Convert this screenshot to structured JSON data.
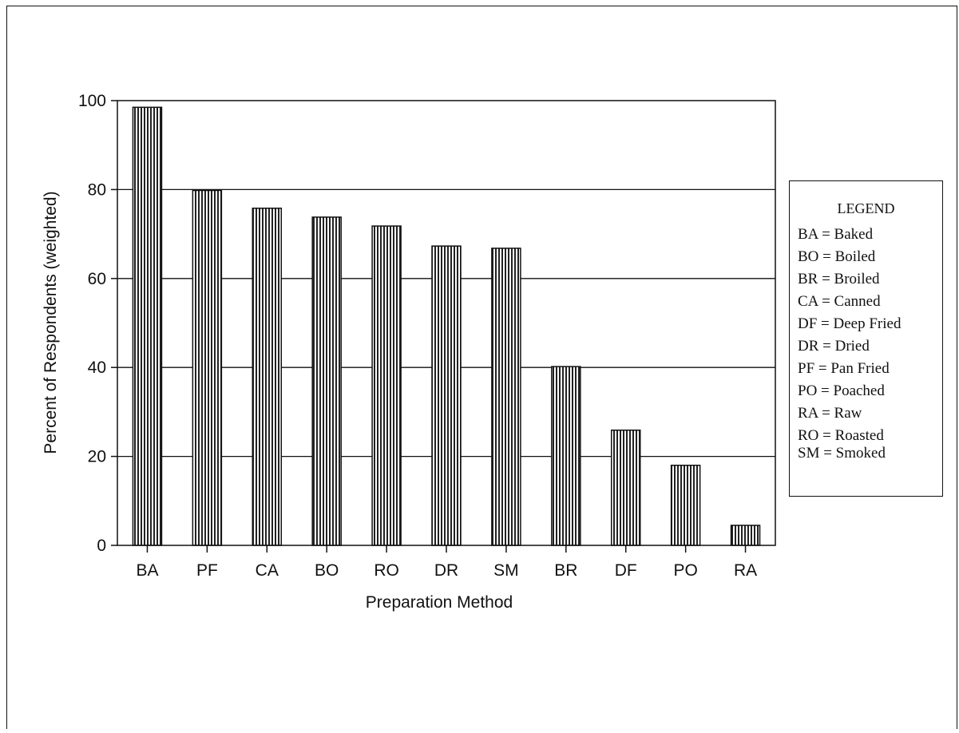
{
  "chart_data": {
    "type": "bar",
    "categories": [
      "BA",
      "PF",
      "CA",
      "BO",
      "RO",
      "DR",
      "SM",
      "BR",
      "DF",
      "PO",
      "RA"
    ],
    "values": [
      98.5,
      79.8,
      75.8,
      73.8,
      71.8,
      67.3,
      66.8,
      40.2,
      25.9,
      18.0,
      4.5
    ],
    "title": "",
    "xlabel": "Preparation Method",
    "ylabel": "Percent of Respondents (weighted)",
    "ylim": [
      0,
      100
    ],
    "yticks": [
      0,
      20,
      40,
      60,
      80,
      100
    ],
    "grid": true,
    "bar_fill": "vertical-hatch",
    "legend": {
      "title": "LEGEND",
      "position": "right",
      "items": [
        "BA = Baked",
        "BO = Boiled",
        "BR = Broiled",
        "CA = Canned",
        "DF = Deep Fried",
        "DR = Dried",
        "PF = Pan Fried",
        "PO = Poached",
        "RA = Raw",
        "RO = Roasted",
        "SM = Smoked"
      ]
    }
  },
  "colors": {
    "ink": "#111111",
    "background": "#ffffff"
  }
}
